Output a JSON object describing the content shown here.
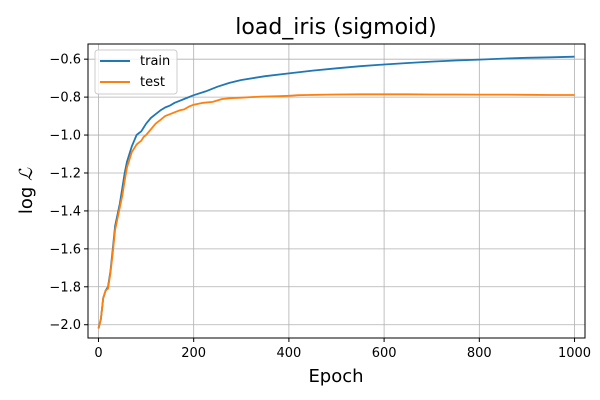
{
  "chart_data": {
    "type": "line",
    "title": "load_iris (sigmoid)",
    "xlabel": "Epoch",
    "ylabel_prefix": "log",
    "ylabel_symbol": "ℒ",
    "xlim": [
      -22,
      1022
    ],
    "ylim": [
      -2.07,
      -0.52
    ],
    "xticks": [
      0,
      200,
      400,
      600,
      800,
      1000
    ],
    "xtick_labels": [
      "0",
      "200",
      "400",
      "600",
      "800",
      "1000"
    ],
    "yticks": [
      -2.0,
      -1.8,
      -1.6,
      -1.4,
      -1.2,
      -1.0,
      -0.8,
      -0.6
    ],
    "ytick_labels": [
      "−2.0",
      "−1.8",
      "−1.6",
      "−1.4",
      "−1.2",
      "−1.0",
      "−0.8",
      "−0.6"
    ],
    "grid": true,
    "legend_position": "top-left",
    "series": [
      {
        "name": "train",
        "color": "#1f77b4",
        "x": [
          0,
          5,
          10,
          15,
          20,
          25,
          30,
          35,
          40,
          45,
          50,
          55,
          60,
          65,
          70,
          75,
          80,
          85,
          90,
          95,
          100,
          110,
          120,
          130,
          140,
          150,
          160,
          170,
          180,
          200,
          225,
          250,
          275,
          300,
          350,
          400,
          450,
          500,
          550,
          600,
          650,
          700,
          750,
          800,
          850,
          900,
          950,
          1000
        ],
        "y": [
          -2.02,
          -1.97,
          -1.86,
          -1.82,
          -1.8,
          -1.72,
          -1.6,
          -1.48,
          -1.42,
          -1.36,
          -1.28,
          -1.2,
          -1.14,
          -1.1,
          -1.06,
          -1.03,
          -1.0,
          -0.99,
          -0.98,
          -0.96,
          -0.94,
          -0.91,
          -0.89,
          -0.87,
          -0.855,
          -0.845,
          -0.83,
          -0.82,
          -0.81,
          -0.79,
          -0.77,
          -0.745,
          -0.725,
          -0.71,
          -0.69,
          -0.675,
          -0.66,
          -0.648,
          -0.637,
          -0.628,
          -0.62,
          -0.613,
          -0.607,
          -0.602,
          -0.597,
          -0.593,
          -0.59,
          -0.587
        ]
      },
      {
        "name": "test",
        "color": "#ff7f0e",
        "x": [
          0,
          5,
          10,
          15,
          20,
          25,
          30,
          35,
          40,
          45,
          50,
          55,
          60,
          65,
          70,
          75,
          80,
          85,
          90,
          95,
          100,
          110,
          120,
          130,
          140,
          150,
          160,
          170,
          180,
          190,
          200,
          220,
          240,
          260,
          280,
          300,
          320,
          340,
          360,
          380,
          400,
          420,
          440,
          460,
          480,
          500,
          550,
          600,
          650,
          700,
          750,
          800,
          850,
          900,
          950,
          1000
        ],
        "y": [
          -2.02,
          -1.97,
          -1.86,
          -1.82,
          -1.81,
          -1.73,
          -1.62,
          -1.5,
          -1.44,
          -1.38,
          -1.32,
          -1.24,
          -1.17,
          -1.13,
          -1.09,
          -1.07,
          -1.05,
          -1.04,
          -1.03,
          -1.01,
          -1.0,
          -0.97,
          -0.94,
          -0.92,
          -0.9,
          -0.89,
          -0.88,
          -0.87,
          -0.865,
          -0.85,
          -0.84,
          -0.83,
          -0.825,
          -0.81,
          -0.805,
          -0.803,
          -0.8,
          -0.798,
          -0.796,
          -0.795,
          -0.793,
          -0.79,
          -0.789,
          -0.788,
          -0.787,
          -0.786,
          -0.785,
          -0.785,
          -0.785,
          -0.786,
          -0.786,
          -0.787,
          -0.787,
          -0.788,
          -0.789,
          -0.789
        ]
      }
    ]
  }
}
